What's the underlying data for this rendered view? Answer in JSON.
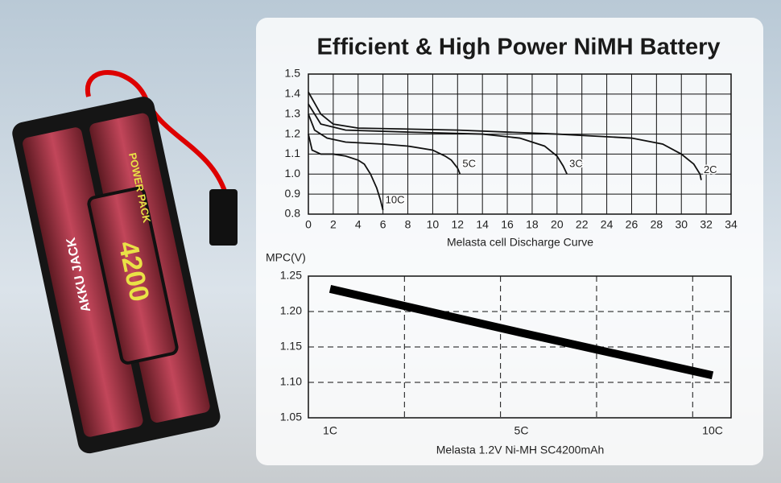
{
  "product": {
    "labels": [
      "AKKU JACK",
      "4200",
      "POWER PACK"
    ]
  },
  "chart_data": [
    {
      "type": "line",
      "title": "Efficient & High Power NiMH Battery",
      "xlabel": "Melasta cell Discharge Curve",
      "xlim": [
        0,
        34
      ],
      "xticks": [
        0,
        2,
        4,
        6,
        8,
        10,
        12,
        14,
        16,
        18,
        20,
        22,
        24,
        26,
        28,
        30,
        32,
        34
      ],
      "ylim": [
        0.8,
        1.5
      ],
      "yticks": [
        0.8,
        0.9,
        {
          "value": 1,
          "label": "1.0"
        },
        1.1,
        1.2,
        1.3,
        1.4,
        1.5
      ],
      "grid": true,
      "series": [
        {
          "name": "10C",
          "color": "#111111",
          "x": [
            0,
            0.3,
            1,
            2,
            3,
            4,
            4.5,
            5,
            5.5,
            5.8,
            6
          ],
          "values": [
            1.2,
            1.12,
            1.1,
            1.1,
            1.09,
            1.07,
            1.05,
            1.0,
            0.93,
            0.87,
            0.82
          ]
        },
        {
          "name": "5C",
          "color": "#111111",
          "x": [
            0,
            0.5,
            1.5,
            3,
            6,
            8,
            10,
            11,
            11.5,
            12,
            12.2
          ],
          "values": [
            1.3,
            1.22,
            1.18,
            1.16,
            1.15,
            1.14,
            1.12,
            1.09,
            1.07,
            1.03,
            1.0
          ]
        },
        {
          "name": "3C",
          "color": "#111111",
          "x": [
            0,
            1,
            3,
            8,
            14,
            17,
            19,
            20,
            20.5,
            20.8
          ],
          "values": [
            1.35,
            1.25,
            1.22,
            1.21,
            1.2,
            1.18,
            1.14,
            1.09,
            1.04,
            1.0
          ]
        },
        {
          "name": "2C",
          "color": "#111111",
          "x": [
            0,
            1,
            2,
            4,
            12,
            20,
            26,
            28.5,
            30,
            31,
            31.5,
            31.6
          ],
          "values": [
            1.41,
            1.3,
            1.25,
            1.23,
            1.22,
            1.2,
            1.18,
            1.15,
            1.1,
            1.05,
            1.0,
            0.97
          ]
        }
      ]
    },
    {
      "type": "line",
      "ylabel": "MPC(V)",
      "xlabel": "Melasta 1.2V Ni-MH SC4200mAh",
      "categories": [
        "1C",
        "5C",
        "10C"
      ],
      "ylim": [
        1.05,
        1.25
      ],
      "yticks": [
        1.05,
        {
          "value": 1.1,
          "label": "1.10"
        },
        1.15,
        {
          "value": 1.2,
          "label": "1.20"
        },
        1.25
      ],
      "grid": true,
      "series": [
        {
          "name": null,
          "color": "#000000",
          "values": [
            1.232,
            1.17,
            1.11
          ]
        }
      ]
    }
  ]
}
